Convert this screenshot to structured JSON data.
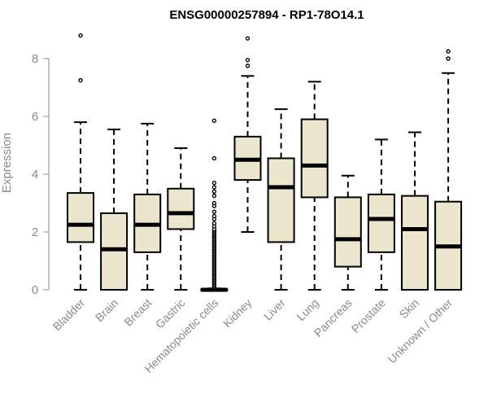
{
  "chart_data": {
    "type": "boxplot",
    "title": "ENSG00000257894 - RP1-78O14.1",
    "xlabel": "",
    "ylabel": "Expression",
    "ylim": [
      0,
      8.5
    ],
    "yticks": [
      0,
      2,
      4,
      6,
      8
    ],
    "grid": false,
    "box_color": "#ede6cf",
    "line_color": "#000000",
    "categories": [
      "Bladder",
      "Brain",
      "Breast",
      "Gastric",
      "Hematopoietic cells",
      "Kidney",
      "Liver",
      "Lung",
      "Pancreas",
      "Prostate",
      "Skin",
      "Unknown / Other"
    ],
    "boxes": [
      {
        "name": "Bladder",
        "min": 0,
        "q1": 1.65,
        "median": 2.25,
        "q3": 3.35,
        "max": 5.8,
        "outliers": [
          7.25,
          8.8
        ]
      },
      {
        "name": "Brain",
        "min": 0,
        "q1": 0,
        "median": 1.4,
        "q3": 2.65,
        "max": 5.55,
        "outliers": []
      },
      {
        "name": "Breast",
        "min": 0,
        "q1": 1.3,
        "median": 2.25,
        "q3": 3.3,
        "max": 5.75,
        "outliers": []
      },
      {
        "name": "Gastric",
        "min": 0,
        "q1": 2.1,
        "median": 2.65,
        "q3": 3.5,
        "max": 4.9,
        "outliers": []
      },
      {
        "name": "Hematopoietic cells",
        "min": 0,
        "q1": 0,
        "median": 0,
        "q3": 0.02,
        "max": 0.05,
        "outliers": [
          0.1,
          0.15,
          0.2,
          0.25,
          0.3,
          0.35,
          0.4,
          0.45,
          0.5,
          0.55,
          0.6,
          0.65,
          0.7,
          0.75,
          0.8,
          0.85,
          0.9,
          0.95,
          1.0,
          1.05,
          1.1,
          1.15,
          1.2,
          1.25,
          1.3,
          1.35,
          1.4,
          1.45,
          1.5,
          1.55,
          1.6,
          1.65,
          1.7,
          1.75,
          1.8,
          1.85,
          1.9,
          1.95,
          2.0,
          2.05,
          2.1,
          2.2,
          2.3,
          2.45,
          2.55,
          2.7,
          2.9,
          3.0,
          3.25,
          3.4,
          3.55,
          3.7,
          4.55,
          5.85
        ]
      },
      {
        "name": "Kidney",
        "min": 2.0,
        "q1": 3.8,
        "median": 4.5,
        "q3": 5.3,
        "max": 7.4,
        "outliers": [
          7.75,
          7.95,
          8.7
        ]
      },
      {
        "name": "Liver",
        "min": 0,
        "q1": 1.65,
        "median": 3.55,
        "q3": 4.55,
        "max": 6.25,
        "outliers": []
      },
      {
        "name": "Lung",
        "min": 0,
        "q1": 3.2,
        "median": 4.3,
        "q3": 5.9,
        "max": 7.2,
        "outliers": []
      },
      {
        "name": "Pancreas",
        "min": 0,
        "q1": 0.8,
        "median": 1.75,
        "q3": 3.2,
        "max": 3.95,
        "outliers": []
      },
      {
        "name": "Prostate",
        "min": 0,
        "q1": 1.3,
        "median": 2.45,
        "q3": 3.3,
        "max": 5.2,
        "outliers": []
      },
      {
        "name": "Skin",
        "min": 0,
        "q1": 0,
        "median": 2.1,
        "q3": 3.25,
        "max": 5.45,
        "outliers": []
      },
      {
        "name": "Unknown / Other",
        "min": 0,
        "q1": 0,
        "median": 1.5,
        "q3": 3.05,
        "max": 7.5,
        "outliers": [
          8.0,
          8.25
        ]
      }
    ]
  }
}
